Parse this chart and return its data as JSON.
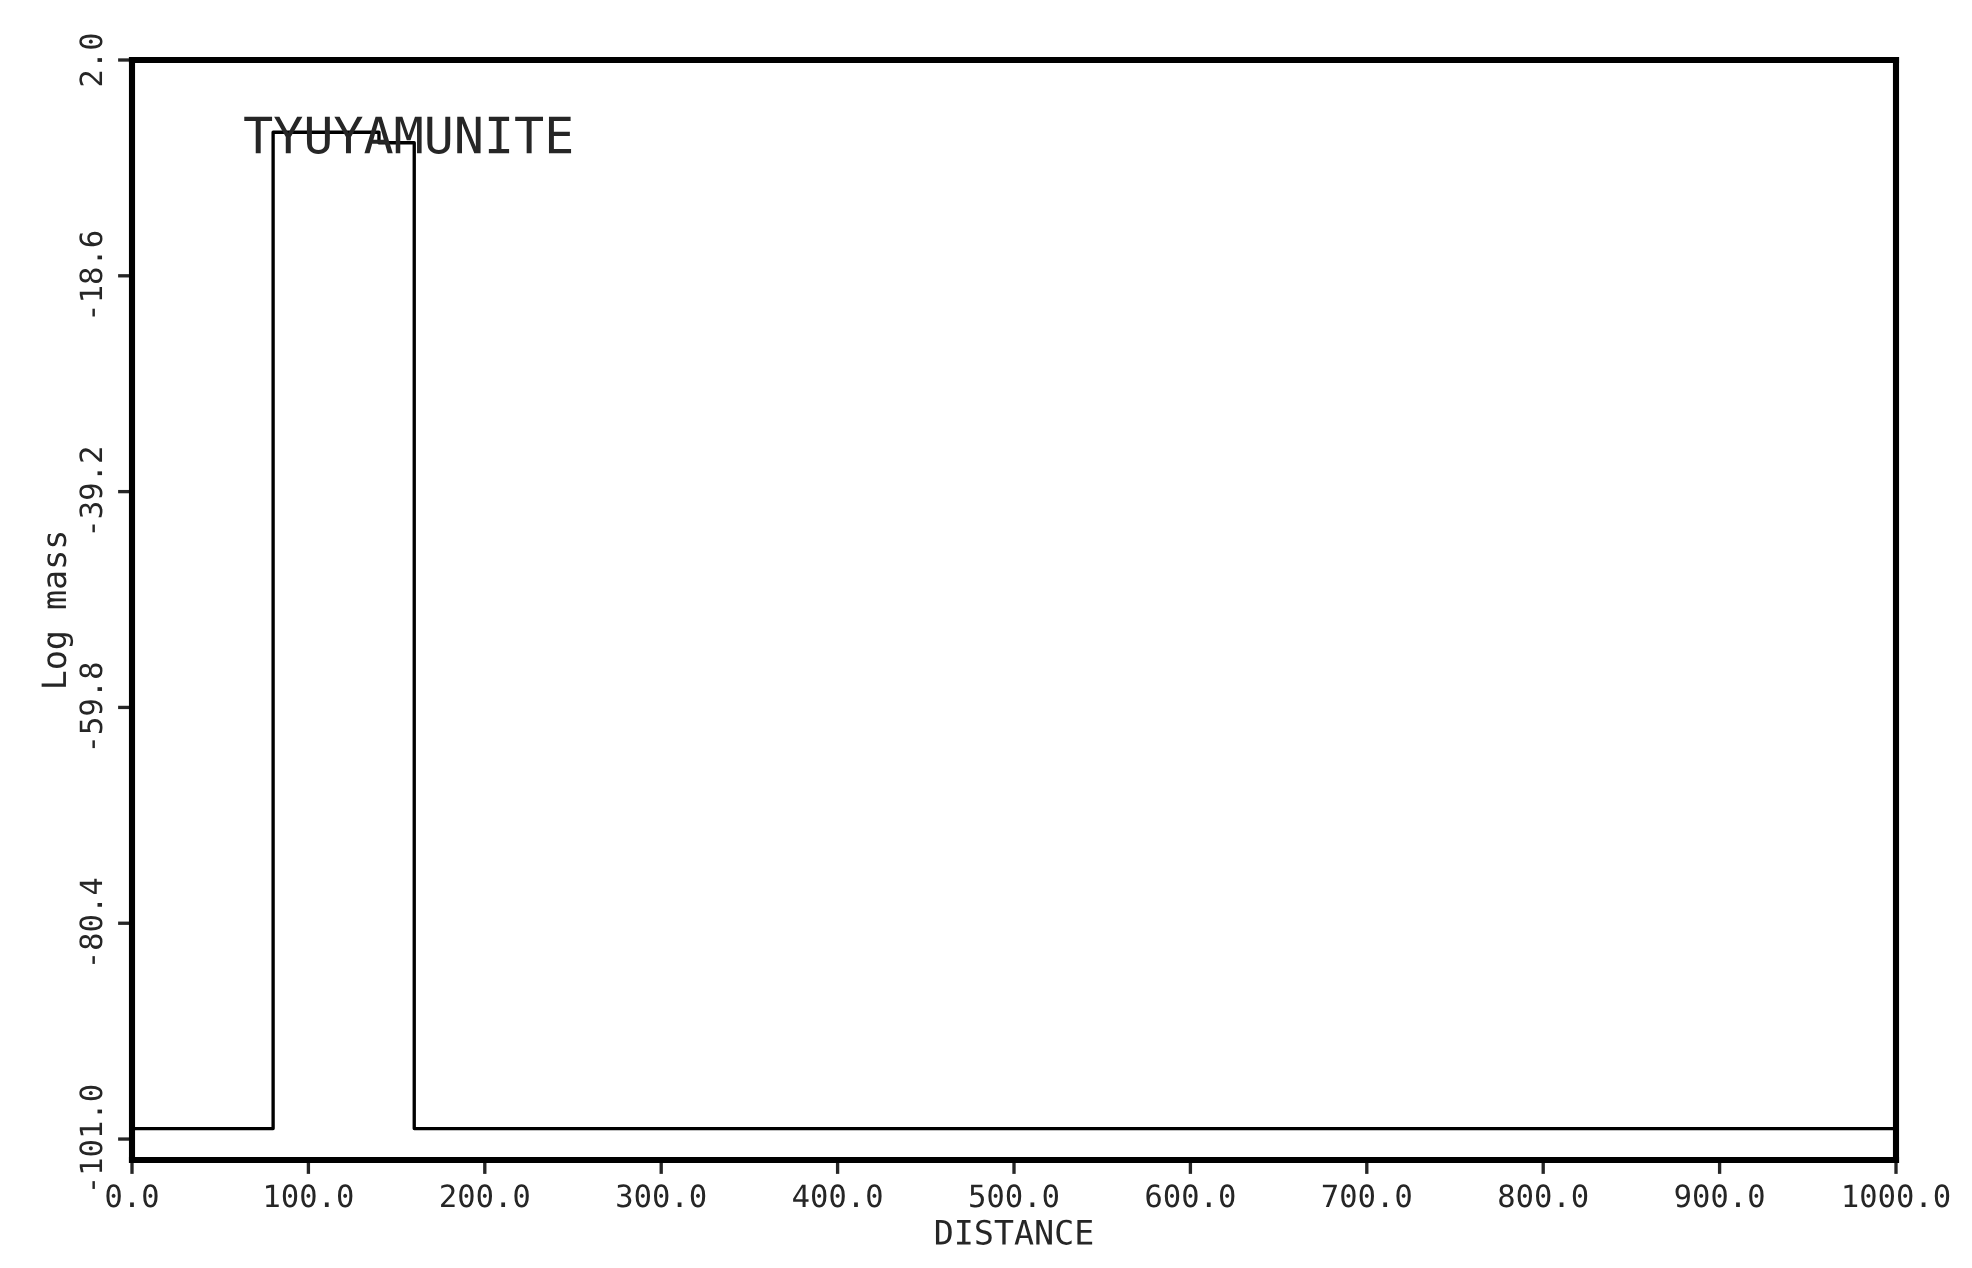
{
  "chart_data": {
    "type": "step",
    "xlabel": "DISTANCE",
    "ylabel": "Log mass",
    "annotations": [
      "TYUYAMUNITE"
    ],
    "x": [
      0,
      80,
      140,
      160,
      1000
    ],
    "series": [
      {
        "color": "#000000",
        "values": [
          -100,
          -4.9,
          -5.9,
          -100,
          -100
        ]
      }
    ],
    "xlim": [
      0,
      1000
    ],
    "ylim": [
      -103,
      2
    ],
    "xticks": [
      {
        "value": 0,
        "label": "0.0"
      },
      {
        "value": 100,
        "label": "100.0"
      },
      {
        "value": 200,
        "label": "200.0"
      },
      {
        "value": 300,
        "label": "300.0"
      },
      {
        "value": 400,
        "label": "400.0"
      },
      {
        "value": 500,
        "label": "500.0"
      },
      {
        "value": 600,
        "label": "600.0"
      },
      {
        "value": 700,
        "label": "700.0"
      },
      {
        "value": 800,
        "label": "800.0"
      },
      {
        "value": 900,
        "label": "900.0"
      },
      {
        "value": 1000,
        "label": "1000.0"
      }
    ],
    "yticks": [
      {
        "value": 2.0,
        "label": "2.0"
      },
      {
        "value": -18.6,
        "label": "-18.6"
      },
      {
        "value": -39.2,
        "label": "-39.2"
      },
      {
        "value": -59.8,
        "label": "-59.8"
      },
      {
        "value": -80.4,
        "label": "-80.4"
      },
      {
        "value": -101.0,
        "label": "-101.0"
      }
    ],
    "grid": false,
    "legend": false
  }
}
